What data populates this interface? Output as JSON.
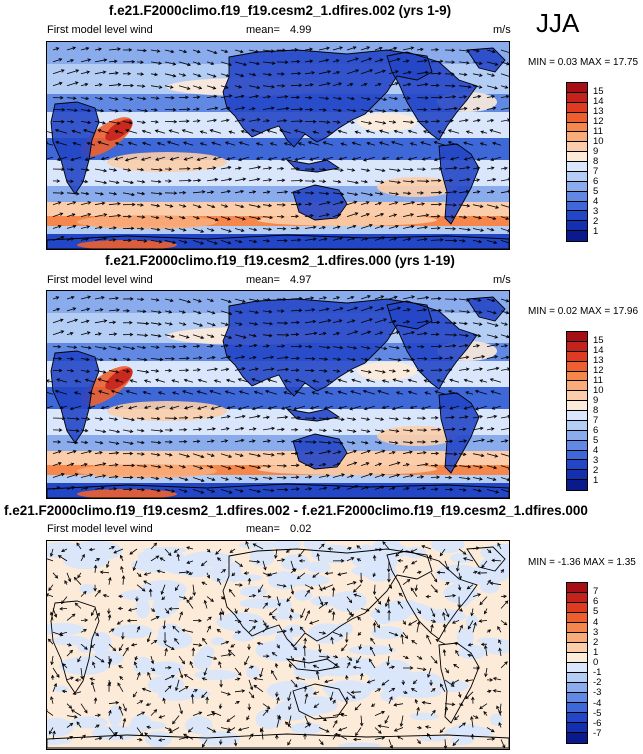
{
  "season": "JJA",
  "panels": [
    {
      "title": "f.e21.F2000climo.f19_f19.cesm2_1.dfires.002 (yrs 1-9)",
      "variable": "First model level wind",
      "mean_label": "mean=",
      "mean": "4.99",
      "units": "m/s",
      "minmax": "MIN = 0.03 MAX = 17.75",
      "colorbar_ticks": [
        "15",
        "14",
        "13",
        "12",
        "11",
        "10",
        "9",
        "8",
        "7",
        "6",
        "5",
        "4",
        "3",
        "2",
        "1"
      ],
      "colorbar_colors": [
        "#a50f15",
        "#c4221c",
        "#de3b20",
        "#ee5f2f",
        "#f6874c",
        "#f9ab7a",
        "#fbcdaa",
        "#fdebd9",
        "#d9e6fb",
        "#b4cdf5",
        "#8aaced",
        "#6189e3",
        "#3e67d8",
        "#2346c6",
        "#1330ae",
        "#0a1a8c"
      ],
      "scale": "magnitude"
    },
    {
      "title": "f.e21.F2000climo.f19_f19.cesm2_1.dfires.000 (yrs 1-19)",
      "variable": "First model level wind",
      "mean_label": "mean=",
      "mean": "4.97",
      "units": "m/s",
      "minmax": "MIN = 0.02 MAX = 17.96",
      "colorbar_ticks": [
        "15",
        "14",
        "13",
        "12",
        "11",
        "10",
        "9",
        "8",
        "7",
        "6",
        "5",
        "4",
        "3",
        "2",
        "1"
      ],
      "colorbar_colors": [
        "#a50f15",
        "#c4221c",
        "#de3b20",
        "#ee5f2f",
        "#f6874c",
        "#f9ab7a",
        "#fbcdaa",
        "#fdebd9",
        "#d9e6fb",
        "#b4cdf5",
        "#8aaced",
        "#6189e3",
        "#3e67d8",
        "#2346c6",
        "#1330ae",
        "#0a1a8c"
      ],
      "scale": "magnitude"
    },
    {
      "title": "f.e21.F2000climo.f19_f19.cesm2_1.dfires.002 - f.e21.F2000climo.f19_f19.cesm2_1.dfires.000",
      "variable": "First model level wind",
      "mean_label": "mean=",
      "mean": "0.02",
      "units": "",
      "minmax": "MIN = -1.36 MAX = 1.35",
      "colorbar_ticks": [
        "7",
        "6",
        "5",
        "4",
        "3",
        "2",
        "1",
        "0",
        "-1",
        "-2",
        "-3",
        "-4",
        "-5",
        "-6",
        "-7"
      ],
      "colorbar_colors": [
        "#a50f15",
        "#c4221c",
        "#de3b20",
        "#ee5f2f",
        "#f6874c",
        "#f9ab7a",
        "#fbcdaa",
        "#fdebd9",
        "#d9e6fb",
        "#b4cdf5",
        "#8aaced",
        "#6189e3",
        "#3e67d8",
        "#2346c6",
        "#1330ae",
        "#0a1a8c"
      ],
      "scale": "difference"
    }
  ]
}
